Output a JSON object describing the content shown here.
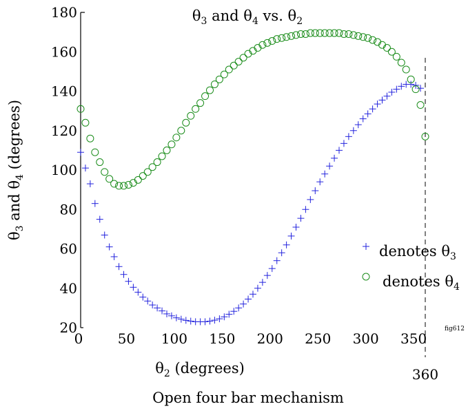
{
  "chart_data": {
    "type": "scatter",
    "title": "θ₃ and θ₄ vs. θ₂",
    "title_parts": {
      "a": "θ",
      "a_sub": "3",
      "b": " and ",
      "c": "θ",
      "c_sub": "4",
      "d": " vs. ",
      "e": "θ",
      "e_sub": "2"
    },
    "xlabel": "θ₂ (degrees)",
    "xlabel_parts": {
      "sym": "θ",
      "sub": "2",
      "rest": " (degrees)"
    },
    "ylabel": "θ₃ and θ₄ (degrees)",
    "ylabel_parts": {
      "a": "θ",
      "a_sub": "3",
      "b": " and ",
      "c": "θ",
      "c_sub": "4",
      "d": " (degrees)"
    },
    "caption": "Open four bar mechanism",
    "figure_tag": "fig612",
    "xlim": [
      0,
      360
    ],
    "ylim": [
      20,
      180
    ],
    "xticks": [
      0,
      50,
      100,
      150,
      200,
      250,
      300,
      350
    ],
    "yticks": [
      20,
      40,
      60,
      80,
      100,
      120,
      140,
      160,
      180
    ],
    "grid": false,
    "legend_position": "lower-right",
    "vline": {
      "x": 360,
      "label": "360"
    },
    "series": [
      {
        "name": "denotes θ₃",
        "legend_parts": {
          "text": "denotes ",
          "sym": "θ",
          "sub": "3"
        },
        "marker": "plus",
        "color": "#2222dd",
        "x": [
          0,
          5,
          10,
          15,
          20,
          25,
          30,
          35,
          40,
          45,
          50,
          55,
          60,
          65,
          70,
          75,
          80,
          85,
          90,
          95,
          100,
          105,
          110,
          115,
          120,
          125,
          130,
          135,
          140,
          145,
          150,
          155,
          160,
          165,
          170,
          175,
          180,
          185,
          190,
          195,
          200,
          205,
          210,
          215,
          220,
          225,
          230,
          235,
          240,
          245,
          250,
          255,
          260,
          265,
          270,
          275,
          280,
          285,
          290,
          295,
          300,
          305,
          310,
          315,
          320,
          325,
          330,
          335,
          340,
          345,
          350,
          355
        ],
        "y": [
          109,
          101,
          93,
          83,
          75,
          67,
          61,
          56,
          51,
          47,
          43.5,
          40.5,
          38,
          35.5,
          33.5,
          31.5,
          30,
          28.5,
          27,
          26,
          25,
          24.3,
          23.7,
          23.3,
          23,
          23,
          23,
          23.3,
          23.8,
          24.5,
          25.5,
          26.8,
          28.3,
          30,
          32,
          34.5,
          37,
          40,
          43,
          46.5,
          50,
          54,
          58,
          62,
          66.5,
          71,
          75.5,
          80,
          85,
          89.5,
          94,
          98,
          102,
          106,
          110,
          113.5,
          117,
          120,
          123,
          126,
          128.5,
          131,
          133.5,
          135.5,
          137.5,
          139.5,
          141,
          142.5,
          143.5,
          143.5,
          143,
          141.5
        ]
      },
      {
        "name": "denotes θ₄",
        "legend_parts": {
          "text": "denotes ",
          "sym": "θ",
          "sub": "4"
        },
        "marker": "circle",
        "color": "#1a8c1a",
        "x": [
          0,
          5,
          10,
          15,
          20,
          25,
          30,
          35,
          40,
          45,
          50,
          55,
          60,
          65,
          70,
          75,
          80,
          85,
          90,
          95,
          100,
          105,
          110,
          115,
          120,
          125,
          130,
          135,
          140,
          145,
          150,
          155,
          160,
          165,
          170,
          175,
          180,
          185,
          190,
          195,
          200,
          205,
          210,
          215,
          220,
          225,
          230,
          235,
          240,
          245,
          250,
          255,
          260,
          265,
          270,
          275,
          280,
          285,
          290,
          295,
          300,
          305,
          310,
          315,
          320,
          325,
          330,
          335,
          340,
          345,
          350,
          355,
          360
        ],
        "y": [
          131,
          124,
          116,
          109,
          104,
          99,
          95.5,
          93,
          92,
          92,
          92.5,
          93.5,
          95,
          97,
          99,
          101.5,
          104,
          107,
          110,
          113,
          116.5,
          120,
          124,
          127.5,
          131,
          134,
          137.5,
          140.5,
          143.5,
          146,
          148.5,
          151,
          153,
          155,
          157,
          159,
          160.5,
          162,
          163.5,
          164.5,
          165.5,
          166.5,
          167,
          167.5,
          168,
          168.5,
          169,
          169,
          169.5,
          169.5,
          169.5,
          169.5,
          169.5,
          169.5,
          169.5,
          169,
          169,
          168.5,
          168,
          167.5,
          167,
          166,
          165,
          163.5,
          162,
          160,
          157.5,
          154.5,
          151,
          146,
          141,
          133,
          117
        ]
      }
    ]
  }
}
